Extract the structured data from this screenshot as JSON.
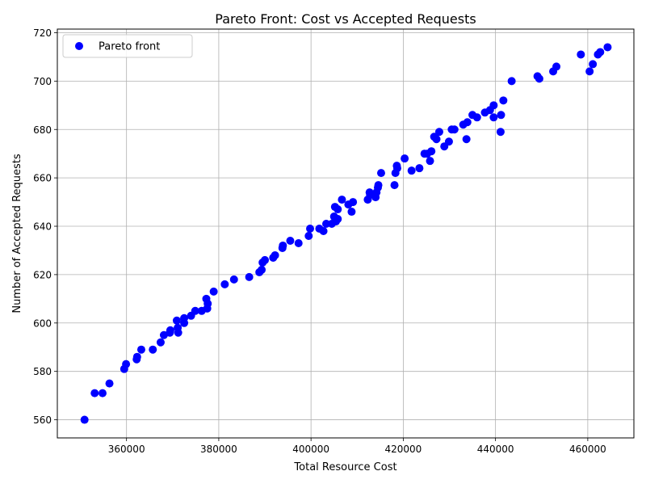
{
  "chart_data": {
    "type": "scatter",
    "title": "Pareto Front: Cost vs Accepted Requests",
    "xlabel": "Total Resource Cost",
    "ylabel": "Number of Accepted Requests",
    "xlim": [
      345000,
      470000
    ],
    "ylim": [
      552.5,
      721.5
    ],
    "x_ticks": [
      360000,
      380000,
      400000,
      420000,
      440000,
      460000
    ],
    "x_tick_labels": [
      "360000",
      "380000",
      "400000",
      "420000",
      "440000",
      "460000"
    ],
    "y_ticks": [
      560,
      580,
      600,
      620,
      640,
      660,
      680,
      700,
      720
    ],
    "y_tick_labels": [
      "560",
      "580",
      "600",
      "620",
      "640",
      "660",
      "680",
      "700",
      "720"
    ],
    "grid": true,
    "legend_position": "upper-left",
    "series": [
      {
        "name": "Pareto front",
        "color": "#0000ff",
        "points": [
          [
            350900,
            560
          ],
          [
            353100,
            571
          ],
          [
            354800,
            571
          ],
          [
            356300,
            575
          ],
          [
            359500,
            581
          ],
          [
            359900,
            583
          ],
          [
            362200,
            585
          ],
          [
            362300,
            586
          ],
          [
            363200,
            589
          ],
          [
            365700,
            589
          ],
          [
            367400,
            592
          ],
          [
            368100,
            595
          ],
          [
            369400,
            596
          ],
          [
            369500,
            597
          ],
          [
            370900,
            601
          ],
          [
            371100,
            598
          ],
          [
            371200,
            596
          ],
          [
            372500,
            600
          ],
          [
            372500,
            602
          ],
          [
            374000,
            603
          ],
          [
            374900,
            605
          ],
          [
            376300,
            605
          ],
          [
            377300,
            610
          ],
          [
            377500,
            606
          ],
          [
            377600,
            608
          ],
          [
            378900,
            613
          ],
          [
            381300,
            616
          ],
          [
            383300,
            618
          ],
          [
            386600,
            619
          ],
          [
            388800,
            621
          ],
          [
            389300,
            622
          ],
          [
            389500,
            625
          ],
          [
            390000,
            626
          ],
          [
            391800,
            627
          ],
          [
            392200,
            628
          ],
          [
            393900,
            632
          ],
          [
            393800,
            631
          ],
          [
            395500,
            634
          ],
          [
            397300,
            633
          ],
          [
            399500,
            636
          ],
          [
            399800,
            639
          ],
          [
            401800,
            639
          ],
          [
            402700,
            638
          ],
          [
            403300,
            641
          ],
          [
            404500,
            641
          ],
          [
            405000,
            644
          ],
          [
            405200,
            648
          ],
          [
            405400,
            642
          ],
          [
            405800,
            643
          ],
          [
            405800,
            647
          ],
          [
            406700,
            651
          ],
          [
            408100,
            649
          ],
          [
            408800,
            646
          ],
          [
            409100,
            650
          ],
          [
            412300,
            651
          ],
          [
            412700,
            654
          ],
          [
            412800,
            653
          ],
          [
            414000,
            652
          ],
          [
            414200,
            654
          ],
          [
            414500,
            656
          ],
          [
            414600,
            657
          ],
          [
            415200,
            662
          ],
          [
            418100,
            657
          ],
          [
            418300,
            662
          ],
          [
            418600,
            665
          ],
          [
            418700,
            664
          ],
          [
            420300,
            668
          ],
          [
            421800,
            663
          ],
          [
            423500,
            664
          ],
          [
            424600,
            670
          ],
          [
            425200,
            670
          ],
          [
            425800,
            667
          ],
          [
            426100,
            671
          ],
          [
            426700,
            677
          ],
          [
            427200,
            676
          ],
          [
            427800,
            679
          ],
          [
            428900,
            673
          ],
          [
            429900,
            675
          ],
          [
            430500,
            680
          ],
          [
            431100,
            680
          ],
          [
            433000,
            682
          ],
          [
            433900,
            683
          ],
          [
            433700,
            676
          ],
          [
            435000,
            686
          ],
          [
            436000,
            685
          ],
          [
            437700,
            687
          ],
          [
            438800,
            688
          ],
          [
            439600,
            690
          ],
          [
            439600,
            685
          ],
          [
            441200,
            686
          ],
          [
            441100,
            679
          ],
          [
            441700,
            692
          ],
          [
            443500,
            700
          ],
          [
            449100,
            702
          ],
          [
            449500,
            701
          ],
          [
            452500,
            704
          ],
          [
            453200,
            706
          ],
          [
            458500,
            711
          ],
          [
            460400,
            704
          ],
          [
            461100,
            707
          ],
          [
            462200,
            711
          ],
          [
            462700,
            712
          ],
          [
            464300,
            714
          ]
        ]
      }
    ]
  }
}
